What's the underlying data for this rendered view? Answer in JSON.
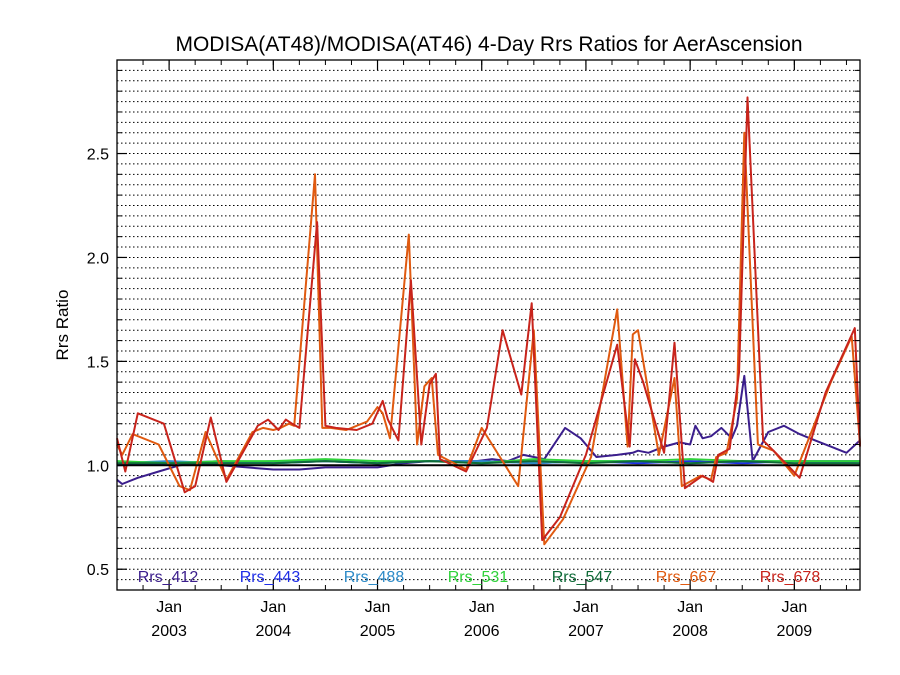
{
  "chart_data": {
    "type": "line",
    "title": "MODISA(AT48)/MODISA(AT46) 4-Day Rrs Ratios for AerAscension",
    "xlabel": "",
    "ylabel": "Rrs Ratio",
    "xlim": [
      2002.5,
      2009.63
    ],
    "ylim": [
      0.4,
      2.95
    ],
    "yticks": [
      0.5,
      1.0,
      1.5,
      2.0,
      2.5
    ],
    "ytick_labels": [
      "0.5",
      "1.0",
      "1.5",
      "2.0",
      "2.5"
    ],
    "xticks": [
      {
        "x": 2003.0,
        "month": "Jan",
        "year": "2003"
      },
      {
        "x": 2004.0,
        "month": "Jan",
        "year": "2004"
      },
      {
        "x": 2005.0,
        "month": "Jan",
        "year": "2005"
      },
      {
        "x": 2006.0,
        "month": "Jan",
        "year": "2006"
      },
      {
        "x": 2007.0,
        "month": "Jan",
        "year": "2007"
      },
      {
        "x": 2008.0,
        "month": "Jan",
        "year": "2008"
      },
      {
        "x": 2009.0,
        "month": "Jan",
        "year": "2009"
      }
    ],
    "grid": "dotted horizontal",
    "reference_line": 1.0,
    "legend": "bottom, inside plot",
    "series": [
      {
        "name": "Rrs_412",
        "color": "#3b1e8c",
        "x": [
          2002.5,
          2002.55,
          2002.7,
          2002.9,
          2003.1,
          2003.3,
          2003.5,
          2003.75,
          2004.0,
          2004.25,
          2004.5,
          2004.75,
          2005.0,
          2005.25,
          2005.5,
          2005.75,
          2005.95,
          2006.1,
          2006.25,
          2006.4,
          2006.5,
          2006.6,
          2006.8,
          2006.95,
          2007.1,
          2007.3,
          2007.45,
          2007.5,
          2007.6,
          2007.75,
          2007.9,
          2008.0,
          2008.05,
          2008.12,
          2008.2,
          2008.3,
          2008.4,
          2008.45,
          2008.52,
          2008.6,
          2008.75,
          2008.9,
          2009.05,
          2009.2,
          2009.35,
          2009.5,
          2009.63
        ],
        "y": [
          0.93,
          0.91,
          0.94,
          0.97,
          1.0,
          1.01,
          1.0,
          0.99,
          0.98,
          0.98,
          0.99,
          0.99,
          0.99,
          1.01,
          1.02,
          1.02,
          1.02,
          1.03,
          1.02,
          1.05,
          1.04,
          1.03,
          1.18,
          1.13,
          1.04,
          1.05,
          1.06,
          1.07,
          1.06,
          1.09,
          1.11,
          1.1,
          1.19,
          1.13,
          1.14,
          1.18,
          1.13,
          1.19,
          1.43,
          1.02,
          1.16,
          1.19,
          1.15,
          1.12,
          1.09,
          1.06,
          1.12
        ]
      },
      {
        "name": "Rrs_443",
        "color": "#1f2ee6",
        "x": [
          2002.5,
          2003.0,
          2003.5,
          2004.0,
          2004.5,
          2005.0,
          2005.5,
          2006.0,
          2006.5,
          2007.0,
          2007.5,
          2008.0,
          2008.5,
          2009.0,
          2009.63
        ],
        "y": [
          1.0,
          1.01,
          1.02,
          1.01,
          1.02,
          1.01,
          1.02,
          1.02,
          1.01,
          1.02,
          1.01,
          1.02,
          1.01,
          1.02,
          1.02
        ]
      },
      {
        "name": "Rrs_488",
        "color": "#2e8bc8",
        "x": [
          2002.5,
          2003.0,
          2003.5,
          2004.0,
          2004.5,
          2005.0,
          2005.5,
          2006.0,
          2006.5,
          2007.0,
          2007.5,
          2008.0,
          2008.5,
          2009.0,
          2009.63
        ],
        "y": [
          1.01,
          1.02,
          1.01,
          1.02,
          1.02,
          1.01,
          1.02,
          1.02,
          1.01,
          1.02,
          1.02,
          1.01,
          1.02,
          1.02,
          1.01
        ]
      },
      {
        "name": "Rrs_531",
        "color": "#2fd23a",
        "x": [
          2002.5,
          2003.0,
          2003.5,
          2004.0,
          2004.5,
          2005.0,
          2005.5,
          2006.0,
          2006.5,
          2007.0,
          2007.5,
          2008.0,
          2008.5,
          2009.0,
          2009.63
        ],
        "y": [
          1.02,
          1.01,
          1.02,
          1.02,
          1.03,
          1.02,
          1.02,
          1.01,
          1.03,
          1.02,
          1.02,
          1.03,
          1.02,
          1.02,
          1.02
        ]
      },
      {
        "name": "Rrs_547",
        "color": "#0f6b38",
        "x": [
          2002.5,
          2003.0,
          2003.5,
          2004.0,
          2004.5,
          2005.0,
          2005.5,
          2006.0,
          2006.5,
          2007.0,
          2007.5,
          2008.0,
          2008.5,
          2009.0,
          2009.63
        ],
        "y": [
          1.01,
          1.01,
          1.01,
          1.01,
          1.02,
          1.01,
          1.02,
          1.01,
          1.02,
          1.01,
          1.02,
          1.01,
          1.02,
          1.01,
          1.01
        ]
      },
      {
        "name": "Rrs_667",
        "color": "#e05a10",
        "x": [
          2002.5,
          2002.55,
          2002.65,
          2002.9,
          2003.1,
          2003.2,
          2003.35,
          2003.55,
          2003.8,
          2003.9,
          2004.0,
          2004.07,
          2004.15,
          2004.2,
          2004.4,
          2004.47,
          2004.55,
          2004.7,
          2004.9,
          2005.0,
          2005.05,
          2005.12,
          2005.3,
          2005.38,
          2005.45,
          2005.52,
          2005.58,
          2005.85,
          2006.0,
          2006.1,
          2006.35,
          2006.5,
          2006.6,
          2006.78,
          2007.05,
          2007.3,
          2007.4,
          2007.45,
          2007.5,
          2007.7,
          2007.85,
          2007.92,
          2008.1,
          2008.2,
          2008.25,
          2008.35,
          2008.45,
          2008.52,
          2008.65,
          2008.8,
          2009.0,
          2009.35,
          2009.55,
          2009.63
        ],
        "y": [
          1.1,
          1.05,
          1.15,
          1.1,
          0.9,
          0.88,
          1.16,
          0.93,
          1.16,
          1.18,
          1.17,
          1.18,
          1.2,
          1.19,
          2.4,
          1.18,
          1.18,
          1.17,
          1.21,
          1.28,
          1.25,
          1.13,
          2.11,
          1.1,
          1.38,
          1.42,
          1.05,
          0.98,
          1.18,
          1.1,
          0.9,
          1.65,
          0.62,
          0.74,
          1.04,
          1.75,
          1.09,
          1.63,
          1.65,
          1.05,
          1.42,
          0.9,
          0.95,
          0.93,
          1.04,
          1.06,
          1.32,
          2.6,
          1.1,
          1.07,
          0.95,
          1.4,
          1.62,
          1.1
        ]
      },
      {
        "name": "Rrs_678",
        "color": "#c8241c",
        "x": [
          2002.5,
          2002.58,
          2002.7,
          2002.95,
          2003.15,
          2003.25,
          2003.4,
          2003.55,
          2003.85,
          2003.95,
          2004.05,
          2004.12,
          2004.18,
          2004.25,
          2004.42,
          2004.5,
          2004.6,
          2004.8,
          2004.95,
          2005.05,
          2005.1,
          2005.2,
          2005.32,
          2005.42,
          2005.5,
          2005.56,
          2005.6,
          2005.85,
          2006.05,
          2006.2,
          2006.38,
          2006.48,
          2006.58,
          2006.75,
          2007.0,
          2007.3,
          2007.42,
          2007.47,
          2007.55,
          2007.75,
          2007.85,
          2007.95,
          2008.12,
          2008.22,
          2008.27,
          2008.38,
          2008.47,
          2008.55,
          2008.7,
          2008.82,
          2009.05,
          2009.3,
          2009.58,
          2009.63
        ],
        "y": [
          1.13,
          0.97,
          1.25,
          1.2,
          0.87,
          0.9,
          1.23,
          0.92,
          1.19,
          1.22,
          1.17,
          1.22,
          1.2,
          1.18,
          2.17,
          1.19,
          1.18,
          1.17,
          1.2,
          1.31,
          1.22,
          1.12,
          1.89,
          1.1,
          1.39,
          1.44,
          1.03,
          0.97,
          1.18,
          1.65,
          1.34,
          1.78,
          0.64,
          0.75,
          1.05,
          1.58,
          1.09,
          1.51,
          1.4,
          1.06,
          1.59,
          0.89,
          0.95,
          0.92,
          1.05,
          1.08,
          1.45,
          2.77,
          1.12,
          1.06,
          0.94,
          1.35,
          1.66,
          1.09
        ]
      }
    ]
  }
}
